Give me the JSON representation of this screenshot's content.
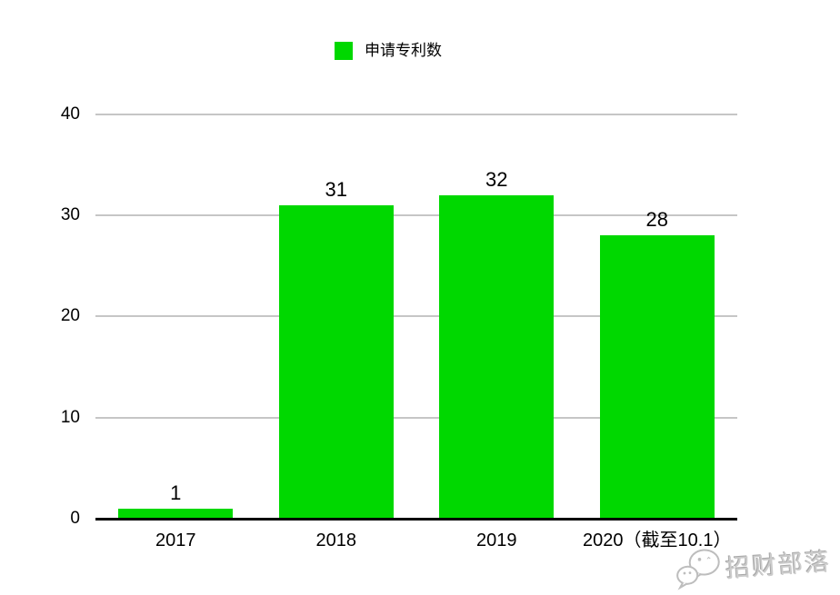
{
  "chart_data": {
    "type": "bar",
    "title": "",
    "legend": [
      {
        "label": "申请专利数",
        "color": "#00d800"
      }
    ],
    "legend_position": "top",
    "categories": [
      "2017",
      "2018",
      "2019",
      "2020（截至10.1）"
    ],
    "series": [
      {
        "name": "申请专利数",
        "values": [
          1,
          31,
          32,
          28
        ]
      }
    ],
    "value_labels": [
      "1",
      "31",
      "32",
      "28"
    ],
    "ylim": [
      0,
      40
    ],
    "yticks": [
      0,
      10,
      20,
      30,
      40
    ],
    "grid": true
  },
  "watermark": {
    "icon": "wechat-icon",
    "text": "招财部落"
  },
  "colors": {
    "bar": "#00d800",
    "gridline": "#c6c6c6",
    "axis_line": "#000000",
    "text": "#000000",
    "watermark_gray": "#b8b8b8",
    "background": "#ffffff"
  }
}
